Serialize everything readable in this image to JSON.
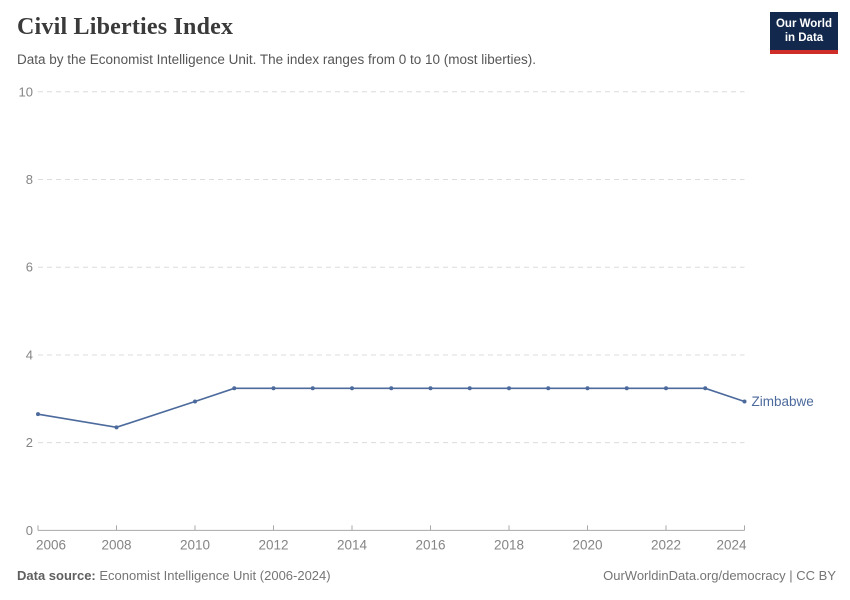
{
  "header": {
    "title": "Civil Liberties Index",
    "subtitle": "Data by the Economist Intelligence Unit. The index ranges from 0 to 10 (most liberties).",
    "logo": {
      "line1": "Our World",
      "line2": "in Data",
      "bg_color": "#12294d",
      "bar_color": "#cf2d27"
    }
  },
  "chart_data": {
    "type": "line",
    "title": "Civil Liberties Index",
    "xlabel": "",
    "ylabel": "",
    "xlim": [
      2006,
      2024
    ],
    "ylim": [
      0,
      10
    ],
    "x_ticks": [
      2006,
      2008,
      2010,
      2012,
      2014,
      2016,
      2018,
      2020,
      2022,
      2024
    ],
    "y_ticks": [
      0,
      2,
      4,
      6,
      8,
      10
    ],
    "grid": "horizontal-dashed",
    "legend_position": "end-of-line-label",
    "series": [
      {
        "name": "Zimbabwe",
        "color": "#4C6A9C",
        "points": [
          [
            2006,
            2.65
          ],
          [
            2008,
            2.35
          ],
          [
            2010,
            2.94
          ],
          [
            2011,
            3.24
          ],
          [
            2012,
            3.24
          ],
          [
            2013,
            3.24
          ],
          [
            2014,
            3.24
          ],
          [
            2015,
            3.24
          ],
          [
            2016,
            3.24
          ],
          [
            2017,
            3.24
          ],
          [
            2018,
            3.24
          ],
          [
            2019,
            3.24
          ],
          [
            2020,
            3.24
          ],
          [
            2021,
            3.24
          ],
          [
            2022,
            3.24
          ],
          [
            2023,
            3.24
          ],
          [
            2024,
            2.94
          ]
        ]
      }
    ],
    "colors": {
      "axis": "#a8a8a8",
      "grid": "#dcdcdc",
      "tick_label": "#858585"
    }
  },
  "footer": {
    "datasource_label": "Data source:",
    "datasource_value": " Economist Intelligence Unit (2006-2024)",
    "rights": "OurWorldinData.org/democracy | CC BY"
  }
}
